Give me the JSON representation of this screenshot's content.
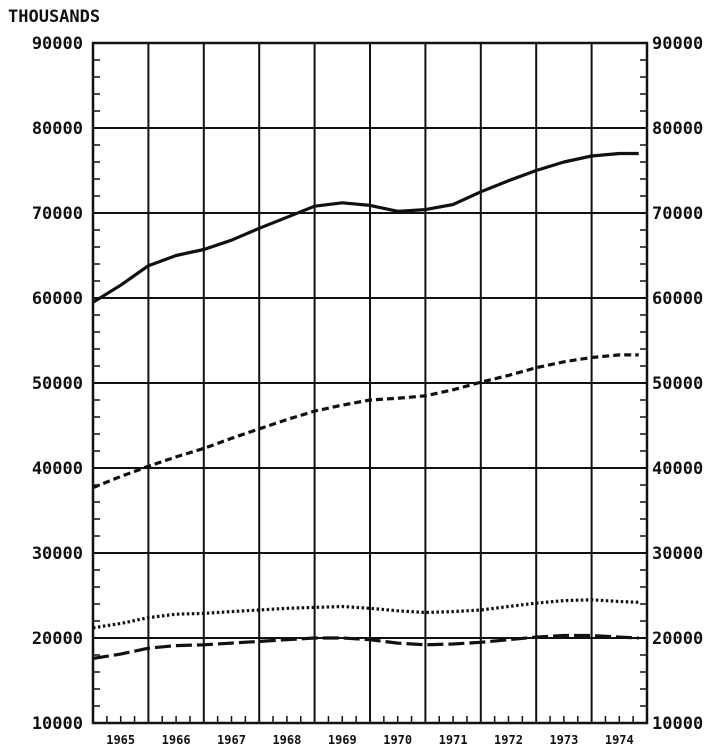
{
  "chart_data": {
    "type": "line",
    "title": "",
    "unit_label": "THOUSANDS",
    "xlabel": "",
    "ylabel": "",
    "ylim": [
      10000,
      90000
    ],
    "y_ticks": [
      "10000",
      "20000",
      "30000",
      "40000",
      "50000",
      "60000",
      "70000",
      "80000",
      "90000"
    ],
    "x_tick_labels": [
      "1965",
      "1966",
      "1967",
      "1968",
      "1969",
      "1970",
      "1971",
      "1972",
      "1973",
      "1974"
    ],
    "xlim": [
      1965.0,
      1975.0
    ],
    "grid": true,
    "legend": "none",
    "series": [
      {
        "style": "solid",
        "x": [
          1965.0,
          1965.5,
          1966.0,
          1966.5,
          1967.0,
          1967.5,
          1968.0,
          1968.5,
          1969.0,
          1969.5,
          1970.0,
          1970.5,
          1971.0,
          1971.5,
          1972.0,
          1972.5,
          1973.0,
          1973.5,
          1974.0,
          1974.5,
          1974.85
        ],
        "values": [
          59500,
          61500,
          63800,
          65000,
          65700,
          66800,
          68200,
          69500,
          70800,
          71200,
          70900,
          70200,
          70400,
          71000,
          72500,
          73800,
          75000,
          76000,
          76700,
          77000,
          77000
        ]
      },
      {
        "style": "dashed",
        "x": [
          1965.0,
          1965.5,
          1966.0,
          1966.5,
          1967.0,
          1967.5,
          1968.0,
          1968.5,
          1969.0,
          1969.5,
          1970.0,
          1970.5,
          1971.0,
          1971.5,
          1972.0,
          1972.5,
          1973.0,
          1973.5,
          1974.0,
          1974.5,
          1974.85
        ],
        "values": [
          37700,
          39000,
          40200,
          41300,
          42300,
          43500,
          44600,
          45700,
          46700,
          47400,
          48000,
          48200,
          48500,
          49200,
          50100,
          50900,
          51800,
          52500,
          53000,
          53300,
          53300
        ]
      },
      {
        "style": "dotted",
        "x": [
          1965.0,
          1965.5,
          1966.0,
          1966.5,
          1967.0,
          1967.5,
          1968.0,
          1968.5,
          1969.0,
          1969.5,
          1970.0,
          1970.5,
          1971.0,
          1971.5,
          1972.0,
          1972.5,
          1973.0,
          1973.5,
          1974.0,
          1974.5,
          1974.85
        ],
        "values": [
          21200,
          21700,
          22400,
          22800,
          22900,
          23100,
          23300,
          23500,
          23600,
          23700,
          23500,
          23200,
          23000,
          23100,
          23300,
          23700,
          24100,
          24400,
          24500,
          24300,
          24200
        ]
      },
      {
        "style": "long-dashed",
        "x": [
          1965.0,
          1965.5,
          1966.0,
          1966.5,
          1967.0,
          1967.5,
          1968.0,
          1968.5,
          1969.0,
          1969.5,
          1970.0,
          1970.5,
          1971.0,
          1971.5,
          1972.0,
          1972.5,
          1973.0,
          1973.5,
          1974.0,
          1974.5,
          1974.85
        ],
        "values": [
          17600,
          18100,
          18800,
          19100,
          19200,
          19400,
          19600,
          19800,
          20000,
          20000,
          19800,
          19400,
          19200,
          19300,
          19500,
          19800,
          20100,
          20300,
          20300,
          20100,
          20000
        ]
      }
    ]
  }
}
